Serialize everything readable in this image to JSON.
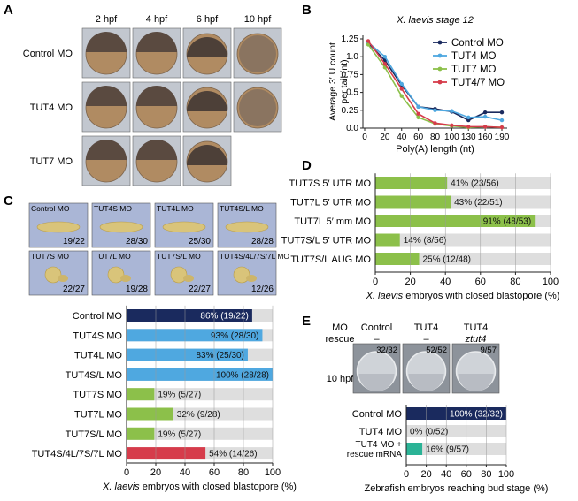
{
  "panels": {
    "A": "A",
    "B": "B",
    "C": "C",
    "D": "D",
    "E": "E"
  },
  "colors": {
    "navy": "#1a2a5e",
    "blue": "#4fa8e0",
    "green": "#8cc04a",
    "red": "#d63c4b",
    "teal": "#2bb396",
    "track": "#dedede"
  },
  "panel_a": {
    "columns": [
      "2 hpf",
      "4 hpf",
      "6 hpf",
      "10 hpf"
    ],
    "rows": [
      "Control MO",
      "TUT4 MO",
      "TUT7 MO"
    ]
  },
  "panel_c_images": [
    {
      "label": "Control MO",
      "count": "19/22"
    },
    {
      "label": "TUT4S MO",
      "count": "28/30"
    },
    {
      "label": "TUT4L MO",
      "count": "25/30"
    },
    {
      "label": "TUT4S/L MO",
      "count": "28/28"
    },
    {
      "label": "TUT7S MO",
      "count": "22/27"
    },
    {
      "label": "TUT7L MO",
      "count": "19/28"
    },
    {
      "label": "TUT7S/L MO",
      "count": "22/27"
    },
    {
      "label": "TUT4S/4L/7S/7L MO",
      "count": "12/26"
    }
  ],
  "panel_e_images": {
    "header_left": [
      "MO",
      "rescue"
    ],
    "stage": "10 hpf",
    "columns": [
      {
        "mo": "Control",
        "rescue": "–",
        "count": "32/32"
      },
      {
        "mo": "TUT4",
        "rescue": "–",
        "count": "52/52"
      },
      {
        "mo": "TUT4",
        "rescue": "ztut4",
        "count": "9/57"
      }
    ]
  },
  "chart_data": [
    {
      "type": "line",
      "title": "X. laevis stage 12",
      "xlabel": "Poly(A) length (nt)",
      "ylabel": "Average 3′ U count per tail (nt)",
      "x": [
        10,
        20,
        40,
        60,
        80,
        100,
        130,
        160,
        190
      ],
      "xticks": [
        "0",
        "20",
        "40",
        "60",
        "80",
        "100",
        "130",
        "160",
        "190"
      ],
      "yticks": [
        "0.0",
        "0.25",
        "0.5",
        "0.75",
        "1.0",
        "1.25"
      ],
      "ylim": [
        0,
        1.25
      ],
      "legend": "top-right",
      "series": [
        {
          "name": "Control MO",
          "color": "#1a2a5e",
          "values": [
            1.19,
            0.95,
            0.6,
            0.3,
            0.27,
            0.23,
            0.11,
            0.22,
            0.22
          ]
        },
        {
          "name": "TUT4 MO",
          "color": "#4fa8e0",
          "values": [
            1.2,
            1.0,
            0.62,
            0.3,
            0.25,
            0.24,
            0.15,
            0.16,
            0.11
          ]
        },
        {
          "name": "TUT7 MO",
          "color": "#8cc04a",
          "values": [
            1.17,
            0.85,
            0.45,
            0.15,
            0.06,
            0.03,
            0.01,
            0.02,
            0.01
          ]
        },
        {
          "name": "TUT4/7 MO",
          "color": "#d63c4b",
          "values": [
            1.22,
            0.9,
            0.55,
            0.2,
            0.07,
            0.04,
            0.02,
            0.02,
            0.01
          ]
        }
      ]
    },
    {
      "type": "bar",
      "xlabel": "X. laevis embryos with closed blastopore (%)",
      "xticks": [
        "0",
        "20",
        "40",
        "60",
        "80",
        "100"
      ],
      "xlim": [
        0,
        100
      ],
      "categories": [
        "Control MO",
        "TUT4S MO",
        "TUT4L MO",
        "TUT4S/L MO",
        "TUT7S MO",
        "TUT7L MO",
        "TUT7S/L MO",
        "TUT4S/4L/7S/7L MO"
      ],
      "values": [
        86,
        93,
        83,
        100,
        19,
        32,
        19,
        54
      ],
      "labels": [
        "86% (19/22)",
        "93% (28/30)",
        "83% (25/30)",
        "100% (28/28)",
        "19% (5/27)",
        "32% (9/28)",
        "19% (5/27)",
        "54% (14/26)"
      ],
      "colors": [
        "#1a2a5e",
        "#4fa8e0",
        "#4fa8e0",
        "#4fa8e0",
        "#8cc04a",
        "#8cc04a",
        "#8cc04a",
        "#d63c4b"
      ]
    },
    {
      "type": "bar",
      "xlabel": "X. laevis embryos with closed blastopore (%)",
      "xticks": [
        "0",
        "20",
        "40",
        "60",
        "80",
        "100"
      ],
      "xlim": [
        0,
        100
      ],
      "categories": [
        "TUT7S 5′ UTR MO",
        "TUT7L 5′ UTR MO",
        "TUT7L 5′ mm MO",
        "TUT7S/L 5′ UTR MO",
        "TUT7S/L AUG MO"
      ],
      "values": [
        41,
        43,
        91,
        14,
        25
      ],
      "labels": [
        "41% (23/56)",
        "43% (22/51)",
        "91% (48/53)",
        "14% (8/56)",
        "25% (12/48)"
      ],
      "colors": [
        "#8cc04a",
        "#8cc04a",
        "#8cc04a",
        "#8cc04a",
        "#8cc04a"
      ]
    },
    {
      "type": "bar",
      "xlabel": "Zebrafish embryos reaching bud stage (%)",
      "xticks": [
        "0",
        "20",
        "40",
        "60",
        "80",
        "100"
      ],
      "xlim": [
        0,
        100
      ],
      "categories": [
        "Control MO",
        "TUT4 MO",
        "TUT4 MO + rescue mRNA"
      ],
      "categories_lines": [
        [
          "Control MO"
        ],
        [
          "TUT4 MO"
        ],
        [
          "TUT4 MO +",
          "rescue mRNA"
        ]
      ],
      "values": [
        100,
        0,
        16
      ],
      "labels": [
        "100% (32/32)",
        "0% (0/52)",
        "16% (9/57)"
      ],
      "colors": [
        "#1a2a5e",
        "#2bb396",
        "#2bb396"
      ]
    }
  ]
}
